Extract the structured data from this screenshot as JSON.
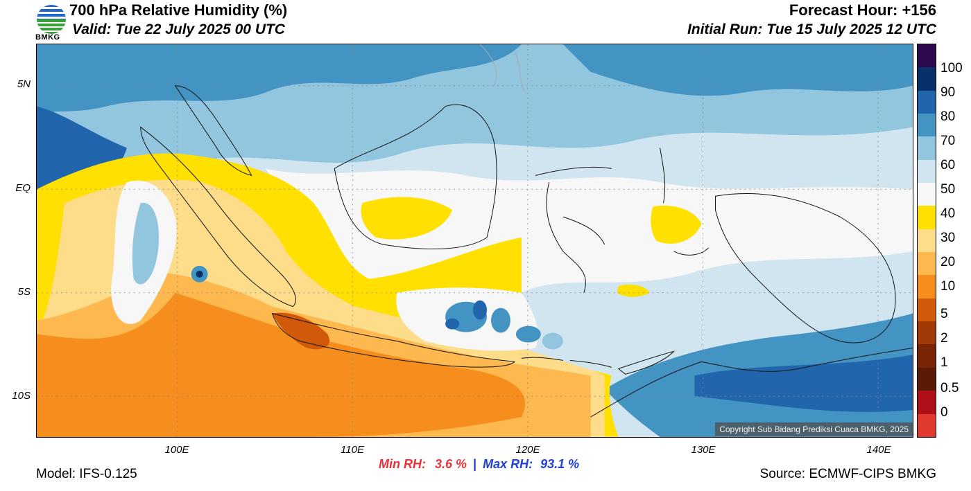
{
  "header": {
    "title": "700 hPa Relative Humidity (%)",
    "valid": "Valid: Tue 22 July 2025 00 UTC",
    "forecast_hour": "Forecast Hour: +156",
    "initial_run": "Initial Run: Tue 15 July 2025 12 UTC",
    "logo_text": "BMKG"
  },
  "axes": {
    "lat_labels": [
      "5N",
      "EQ",
      "5S",
      "10S"
    ],
    "lon_labels": [
      "100E",
      "110E",
      "120E",
      "130E",
      "140E"
    ]
  },
  "colorbar": {
    "labels": [
      "100",
      "90",
      "80",
      "70",
      "60",
      "50",
      "40",
      "30",
      "20",
      "10",
      "5",
      "2",
      "1",
      "0.5",
      "0"
    ],
    "colors": [
      "#2d0a4e",
      "#08306b",
      "#2166ac",
      "#4393c3",
      "#92c5de",
      "#d1e5f0",
      "#f7f7f7",
      "#ffe000",
      "#fddc8a",
      "#fdb84f",
      "#f68e1e",
      "#d05a0a",
      "#a23a08",
      "#7a2406",
      "#5a1a05",
      "#b01018",
      "#e03a30"
    ]
  },
  "footer": {
    "model": "Model: IFS-0.125",
    "source": "Source: ECMWF-CIPS BMKG",
    "min_label": "Min RH:",
    "min_value": "3.6 %",
    "separator": "|",
    "max_label": "Max RH:",
    "max_value": "93.1 %",
    "copyright": "Copyright Sub Bidang Prediksi Cuaca BMKG, 2025"
  }
}
